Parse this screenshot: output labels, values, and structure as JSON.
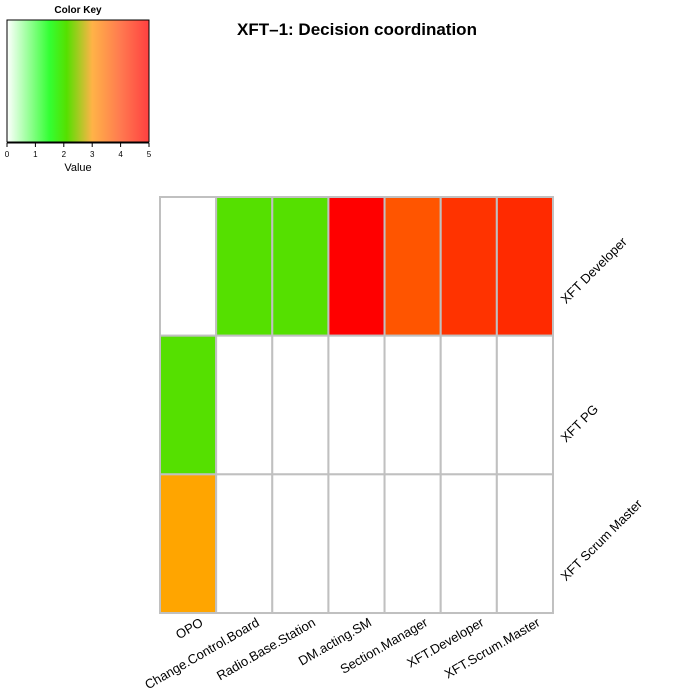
{
  "chart_data": {
    "type": "heatmap",
    "title": "XFT–1: Decision coordination",
    "columns": [
      "OPO",
      "Change.Control.Board",
      "Radio.Base.Station",
      "DM.acting.SM",
      "Section.Manager",
      "XFT.Developer",
      "XFT.Scrum.Master"
    ],
    "rows": [
      "XFT Developer",
      "XFT PG",
      "XFT Scrum Master"
    ],
    "values": [
      [
        0,
        2,
        2,
        5,
        4,
        4.5,
        4.5
      ],
      [
        2,
        0,
        0,
        0,
        0,
        0,
        0
      ],
      [
        3,
        0,
        0,
        0,
        0,
        0,
        0
      ]
    ],
    "cell_colors": [
      [
        "#ffffff",
        "#55e000",
        "#55e000",
        "#ff0000",
        "#ff5500",
        "#ff3300",
        "#ff2a00"
      ],
      [
        "#55e000",
        "#ffffff",
        "#ffffff",
        "#ffffff",
        "#ffffff",
        "#ffffff",
        "#ffffff"
      ],
      [
        "#ffa500",
        "#ffffff",
        "#ffffff",
        "#ffffff",
        "#ffffff",
        "#ffffff",
        "#ffffff"
      ]
    ],
    "grid_color": "#c0c0c0",
    "color_key": {
      "title": "Color Key",
      "xlabel": "Value",
      "range": [
        0,
        5
      ],
      "ticks": [
        "0",
        "1",
        "2",
        "3",
        "4",
        "5"
      ],
      "stops": [
        {
          "value": 0,
          "color": "#ffffff"
        },
        {
          "value": 1.5,
          "color": "#33ff33"
        },
        {
          "value": 2.1,
          "color": "#55e000"
        },
        {
          "value": 3,
          "color": "#ffb347"
        },
        {
          "value": 4,
          "color": "#ff7a50"
        },
        {
          "value": 5,
          "color": "#ff4040"
        }
      ]
    }
  }
}
